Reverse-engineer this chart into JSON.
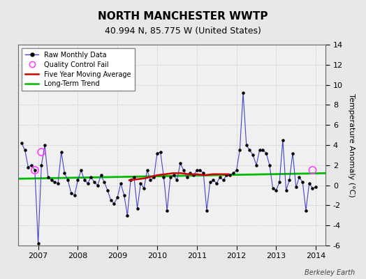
{
  "title": "NORTH MANCHESTER WWTP",
  "subtitle": "40.994 N, 85.775 W (United States)",
  "ylabel": "Temperature Anomaly (°C)",
  "watermark": "Berkeley Earth",
  "background_color": "#e8e8e8",
  "plot_bg_color": "#f0f0f0",
  "ylim": [
    -6,
    14
  ],
  "yticks": [
    -6,
    -4,
    -2,
    0,
    2,
    4,
    6,
    8,
    10,
    12,
    14
  ],
  "xlim_start": 2006.5,
  "xlim_end": 2014.25,
  "xticks": [
    2007,
    2008,
    2009,
    2010,
    2011,
    2012,
    2013,
    2014
  ],
  "raw_data": {
    "x": [
      2006.583,
      2006.667,
      2006.75,
      2006.833,
      2006.917,
      2007.0,
      2007.083,
      2007.167,
      2007.25,
      2007.333,
      2007.417,
      2007.5,
      2007.583,
      2007.667,
      2007.75,
      2007.833,
      2007.917,
      2008.0,
      2008.083,
      2008.167,
      2008.25,
      2008.333,
      2008.417,
      2008.5,
      2008.583,
      2008.667,
      2008.75,
      2008.833,
      2008.917,
      2009.0,
      2009.083,
      2009.167,
      2009.25,
      2009.333,
      2009.417,
      2009.5,
      2009.583,
      2009.667,
      2009.75,
      2009.833,
      2009.917,
      2010.0,
      2010.083,
      2010.167,
      2010.25,
      2010.333,
      2010.417,
      2010.5,
      2010.583,
      2010.667,
      2010.75,
      2010.833,
      2010.917,
      2011.0,
      2011.083,
      2011.167,
      2011.25,
      2011.333,
      2011.417,
      2011.5,
      2011.583,
      2011.667,
      2011.75,
      2011.833,
      2011.917,
      2012.0,
      2012.083,
      2012.167,
      2012.25,
      2012.333,
      2012.417,
      2012.5,
      2012.583,
      2012.667,
      2012.75,
      2012.833,
      2012.917,
      2013.0,
      2013.083,
      2013.167,
      2013.25,
      2013.333,
      2013.417,
      2013.5,
      2013.583,
      2013.667,
      2013.75,
      2013.833,
      2013.917,
      2014.0
    ],
    "y": [
      4.2,
      3.5,
      1.8,
      2.0,
      1.5,
      -5.8,
      2.0,
      4.0,
      0.8,
      0.5,
      0.3,
      0.2,
      3.3,
      1.2,
      0.5,
      -0.8,
      -1.0,
      0.5,
      1.5,
      0.5,
      0.2,
      0.8,
      0.3,
      0.0,
      1.0,
      0.3,
      -0.5,
      -1.5,
      -1.8,
      -1.2,
      0.2,
      -1.0,
      -3.0,
      0.5,
      0.8,
      -2.3,
      0.2,
      -0.3,
      1.5,
      0.5,
      0.8,
      3.2,
      3.3,
      0.8,
      -2.5,
      0.8,
      1.0,
      0.5,
      2.2,
      1.5,
      0.8,
      1.2,
      1.0,
      1.5,
      1.5,
      1.2,
      -2.5,
      0.3,
      0.5,
      0.2,
      0.8,
      0.5,
      1.0,
      1.0,
      1.2,
      1.5,
      3.5,
      9.2,
      4.0,
      3.5,
      3.0,
      2.0,
      3.5,
      3.5,
      3.2,
      2.0,
      -0.3,
      -0.5,
      0.3,
      4.5,
      -0.5,
      0.5,
      3.2,
      -0.2,
      0.8,
      0.3,
      -2.5,
      0.2,
      -0.3,
      -0.2
    ]
  },
  "qc_fail_points": {
    "x": [
      2006.917,
      2007.083,
      2013.917
    ],
    "y": [
      1.5,
      3.3,
      1.5
    ]
  },
  "moving_avg": {
    "x": [
      2009.3,
      2009.5,
      2009.7,
      2009.9,
      2010.0,
      2010.2,
      2010.4,
      2010.6,
      2010.8,
      2011.0,
      2011.2,
      2011.4,
      2011.6,
      2011.8
    ],
    "y": [
      0.5,
      0.6,
      0.7,
      0.9,
      1.0,
      1.1,
      1.2,
      1.2,
      1.1,
      1.1,
      1.0,
      1.1,
      1.1,
      1.1
    ]
  },
  "trend_line": {
    "x": [
      2006.5,
      2014.25
    ],
    "y": [
      0.65,
      1.2
    ]
  },
  "line_color": "#4444cc",
  "marker_color": "#000000",
  "qc_color": "#ff44ff",
  "moving_avg_color": "#cc0000",
  "trend_color": "#00bb00",
  "grid_color": "#cccccc",
  "title_fontsize": 11,
  "subtitle_fontsize": 9,
  "tick_fontsize": 8,
  "ylabel_fontsize": 8,
  "legend_fontsize": 7,
  "watermark_fontsize": 7
}
